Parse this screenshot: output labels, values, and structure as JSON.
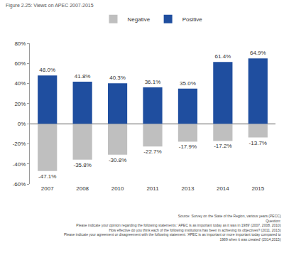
{
  "chart_data": {
    "type": "bar",
    "title": "Figure 2.25: Views on APEC 2007-2015",
    "categories": [
      "2007",
      "2008",
      "2010",
      "2011",
      "2013",
      "2014",
      "2015"
    ],
    "series": [
      {
        "name": "Negative",
        "color": "#bfbfbf",
        "values": [
          -47.1,
          -35.8,
          -30.8,
          -22.7,
          -17.9,
          -17.2,
          -13.7
        ],
        "value_labels": [
          "-47.1%",
          "-35.8%",
          "-30.8%",
          "-22.7%",
          "-17.9%",
          "-17.2%",
          "-13.7%"
        ]
      },
      {
        "name": "Positive",
        "color": "#1f4e9f",
        "values": [
          48.0,
          41.8,
          40.3,
          36.1,
          35.0,
          61.4,
          64.9
        ],
        "value_labels": [
          "48.0%",
          "41.8%",
          "40.3%",
          "36.1%",
          "35.0%",
          "61.4%",
          "64.9%"
        ]
      }
    ],
    "ylim": [
      -60,
      80
    ],
    "yticks": [
      {
        "value": -60,
        "label": "-60%"
      },
      {
        "value": -40,
        "label": "-40%"
      },
      {
        "value": -20,
        "label": "-20%"
      },
      {
        "value": 0,
        "label": "0%"
      },
      {
        "value": 20,
        "label": "20%"
      },
      {
        "value": 40,
        "label": "40%"
      },
      {
        "value": 60,
        "label": "60%"
      },
      {
        "value": 80,
        "label": "80%"
      }
    ],
    "grid": false,
    "legend": "top",
    "data_labels": true,
    "annotations": [
      "Source: Survey on the State of the Region, various years (PECC)",
      "Question:",
      "Please indicate your opinion regarding the following statements: 'APEC is as important today as it was in 1989' (2007, 2008, 2010)",
      "How effective do you think each of the following institutions has been in achieving its objectives? (2011, 2013)",
      "Please indicate your agreement or disagreement with the following statement: 'APEC is as important or more important today compared to",
      "1989 when it was created' (2014,2015)"
    ]
  }
}
